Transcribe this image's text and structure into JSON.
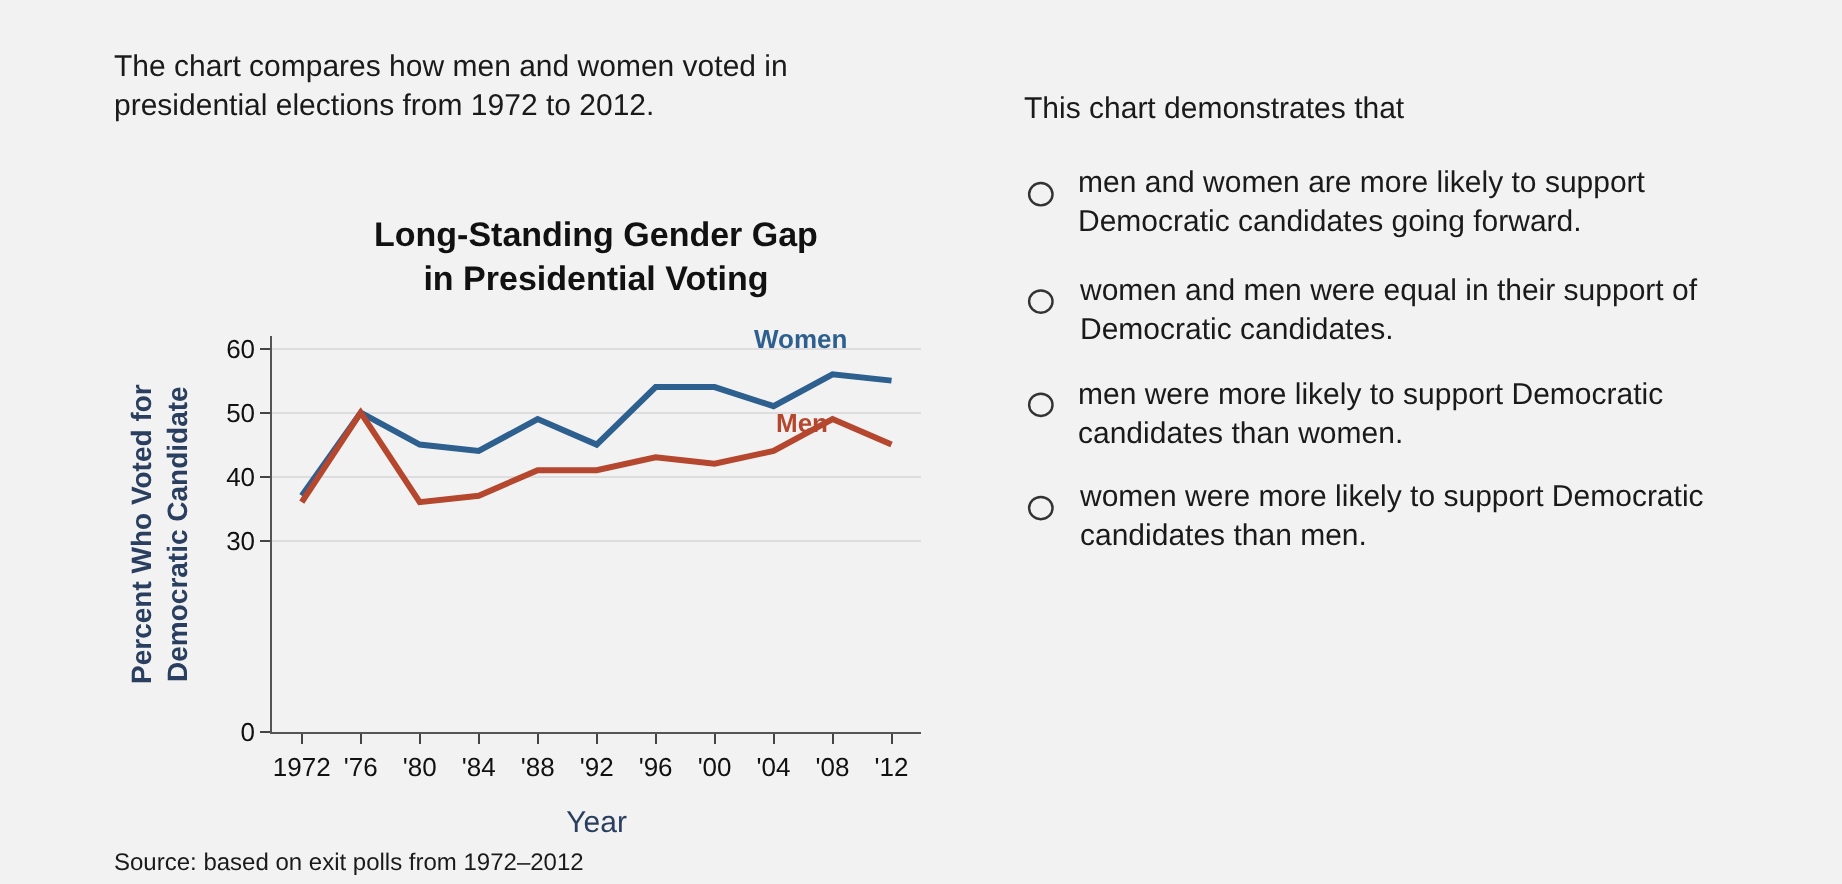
{
  "chart_data": {
    "type": "line",
    "title": "Long-Standing Gender Gap\nin Presidential Voting",
    "xlabel": "Year",
    "ylabel": "Percent Who Voted for\nDemocratic Candidate",
    "x": [
      1972,
      1976,
      1980,
      1984,
      1988,
      1992,
      1996,
      2000,
      2004,
      2008,
      2012
    ],
    "series": [
      {
        "name": "Women",
        "color": "#2d5f8f",
        "values": [
          37,
          50,
          45,
          44,
          49,
          45,
          54,
          54,
          51,
          56,
          55
        ]
      },
      {
        "name": "Men",
        "color": "#b5472f",
        "values": [
          36,
          50,
          36,
          37,
          41,
          41,
          43,
          42,
          44,
          49,
          45
        ]
      }
    ],
    "xlim": [
      1970,
      2014
    ],
    "xticks": [
      1972,
      {
        "value": 1976,
        "label": "'76"
      },
      {
        "value": 1980,
        "label": "'80"
      },
      {
        "value": 1984,
        "label": "'84"
      },
      {
        "value": 1988,
        "label": "'88"
      },
      {
        "value": 1992,
        "label": "'92"
      },
      {
        "value": 1996,
        "label": "'96"
      },
      {
        "value": 2000,
        "label": "'00"
      },
      {
        "value": 2004,
        "label": "'04"
      },
      {
        "value": 2008,
        "label": "'08"
      },
      {
        "value": 2012,
        "label": "'12"
      }
    ],
    "ylim": [
      0,
      62
    ],
    "yticks": [
      0,
      30,
      40,
      50,
      60
    ],
    "grid": "y",
    "legend": false,
    "marker": "none",
    "line_style": "solid",
    "annotations": [
      "The chart compares how men and women voted in\npresidential elections from 1972 to 2012.",
      "Source: based on exit polls from 1972–2012",
      "This chart demonstrates that",
      "men and women are more likely to support\nDemocratic candidates going forward.",
      "women and men were equal in their support of\nDemocratic candidates.",
      "men were more likely to support Democratic\ncandidates than women.",
      "women were more likely to support Democratic\ncandidates than men."
    ]
  }
}
